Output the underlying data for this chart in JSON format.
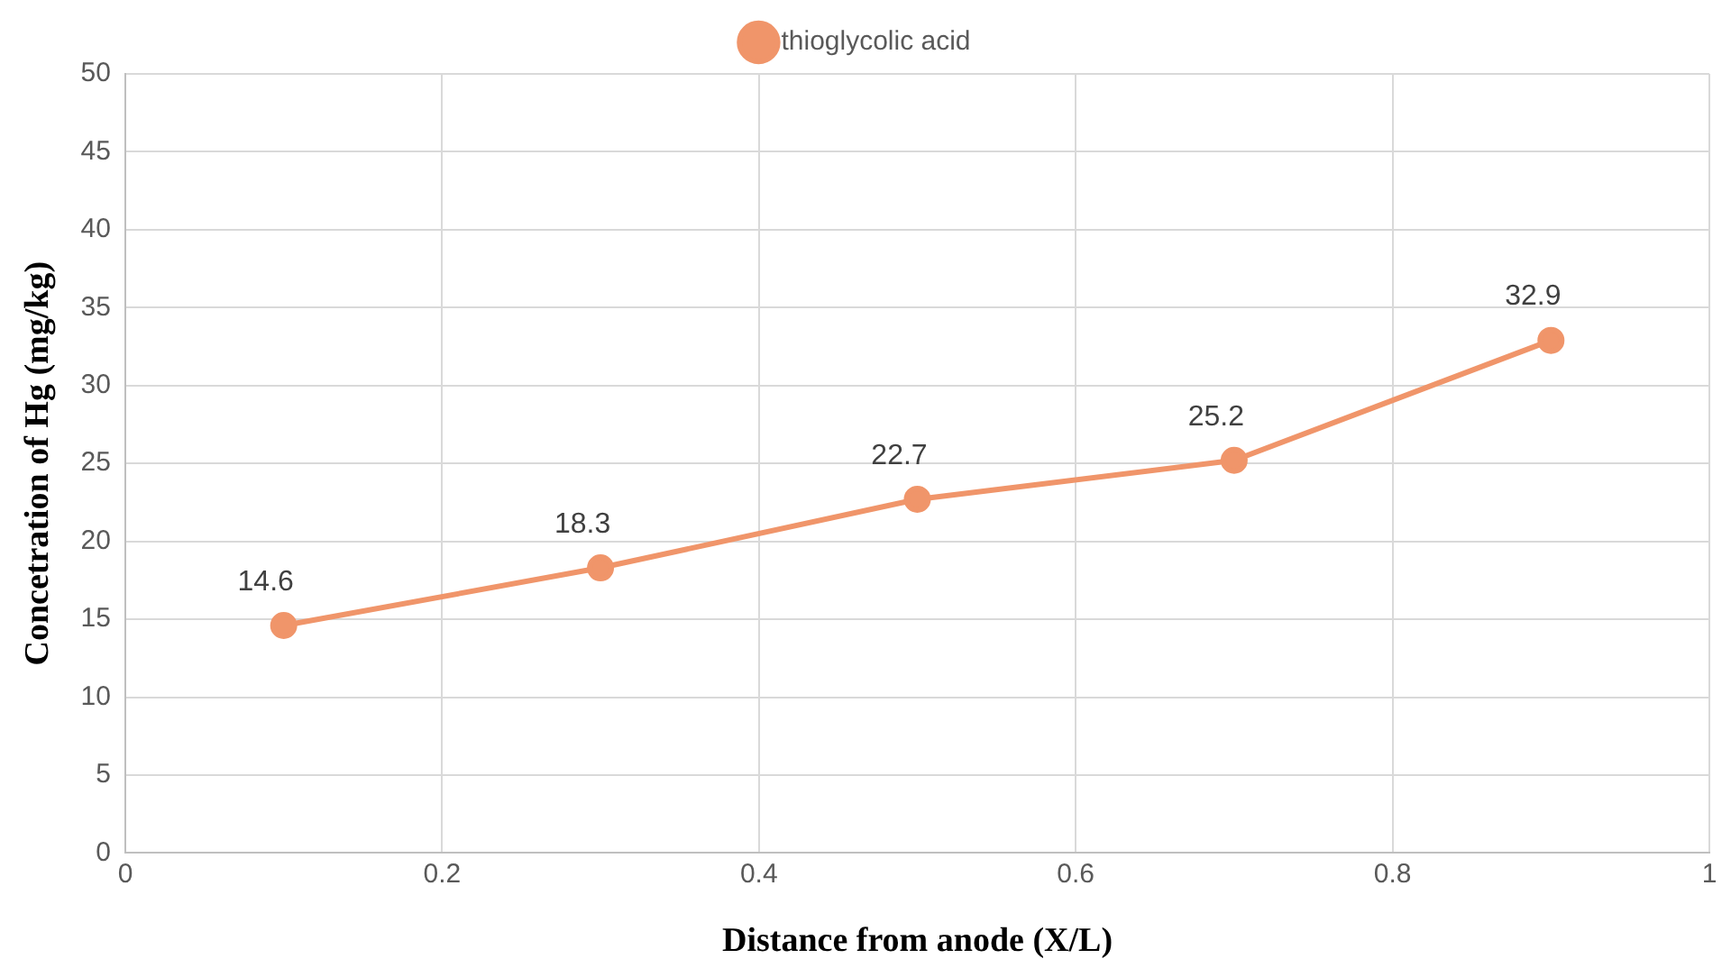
{
  "chart_data": {
    "type": "line",
    "xlabel": "Distance from anode (X/L)",
    "ylabel": "Concetration of Hg (mg/kg)",
    "x": [
      0.1,
      0.3,
      0.5,
      0.7,
      0.9
    ],
    "series": [
      {
        "name": "thioglycolic acid",
        "color": "#f0956a",
        "values": [
          14.6,
          18.3,
          22.7,
          25.2,
          32.9
        ]
      }
    ],
    "xlim": [
      0,
      1
    ],
    "xticks": [
      0,
      0.2,
      0.4,
      0.6,
      0.8,
      1
    ],
    "ylim": [
      0,
      50
    ],
    "yticks": [
      0,
      5,
      10,
      15,
      20,
      25,
      30,
      35,
      40,
      45,
      50
    ],
    "grid": true,
    "legend": "top",
    "marker": "circle",
    "line_style": "solid",
    "data_labels": true
  }
}
